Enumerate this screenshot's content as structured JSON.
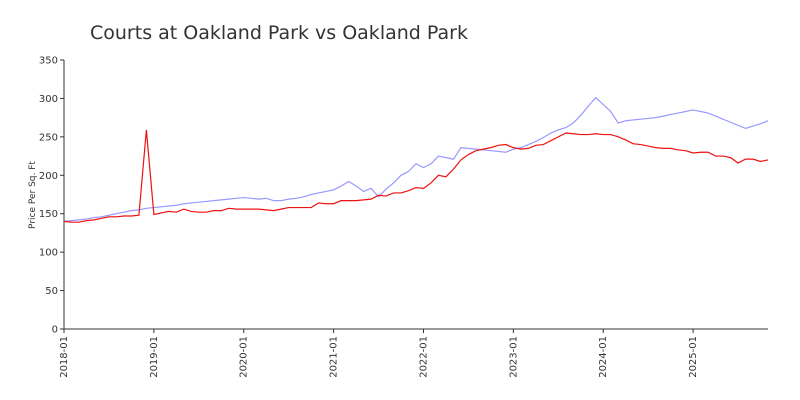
{
  "chart_data": {
    "type": "line",
    "title": "Courts at Oakland Park vs Oakland Park",
    "y_label": "Price Per Sq. Ft",
    "x": [
      "2018-01",
      "2018-02",
      "2018-03",
      "2018-04",
      "2018-05",
      "2018-06",
      "2018-07",
      "2018-08",
      "2018-09",
      "2018-10",
      "2018-11",
      "2018-12",
      "2019-01",
      "2019-02",
      "2019-03",
      "2019-04",
      "2019-05",
      "2019-06",
      "2019-07",
      "2019-08",
      "2019-09",
      "2019-10",
      "2019-11",
      "2019-12",
      "2020-01",
      "2020-02",
      "2020-03",
      "2020-04",
      "2020-05",
      "2020-06",
      "2020-07",
      "2020-08",
      "2020-09",
      "2020-10",
      "2020-11",
      "2020-12",
      "2021-01",
      "2021-02",
      "2021-03",
      "2021-04",
      "2021-05",
      "2021-06",
      "2021-07",
      "2021-08",
      "2021-09",
      "2021-10",
      "2021-11",
      "2021-12",
      "2022-01",
      "2022-02",
      "2022-03",
      "2022-04",
      "2022-05",
      "2022-06",
      "2022-07",
      "2022-08",
      "2022-09",
      "2022-10",
      "2022-11",
      "2022-12",
      "2023-01",
      "2023-02",
      "2023-03",
      "2023-04",
      "2023-05",
      "2023-06",
      "2023-07",
      "2023-08",
      "2023-09",
      "2023-10",
      "2023-11",
      "2023-12",
      "2024-01",
      "2024-02",
      "2024-03",
      "2024-04",
      "2024-05",
      "2024-06",
      "2024-07",
      "2024-08",
      "2024-09",
      "2024-10",
      "2024-11",
      "2024-12",
      "2025-01",
      "2025-02",
      "2025-03",
      "2025-04",
      "2025-05",
      "2025-06",
      "2025-07",
      "2025-08",
      "2025-09",
      "2025-10",
      "2025-11"
    ],
    "series": [
      {
        "color": "#9999ff",
        "values": [
          140,
          141,
          142,
          143,
          145,
          146,
          148,
          150,
          152,
          154,
          155,
          157,
          158,
          159,
          160,
          161,
          163,
          164,
          165,
          166,
          167,
          168,
          169,
          170,
          171,
          170,
          169,
          170,
          167,
          167,
          169,
          170,
          172,
          175,
          177,
          179,
          181,
          186,
          192,
          186,
          179,
          183,
          172,
          182,
          190,
          200,
          205,
          215,
          210,
          215,
          225,
          223,
          221,
          236,
          235,
          234,
          233,
          232,
          231,
          230,
          234,
          236,
          240,
          244,
          249,
          255,
          259,
          262,
          268,
          278,
          290,
          301,
          292,
          283,
          268,
          271,
          272,
          273,
          274,
          275,
          277,
          279,
          281,
          283,
          285,
          283,
          281,
          277,
          273,
          269,
          265,
          261,
          264,
          267,
          271
        ]
      },
      {
        "color": "#ee1111",
        "values": [
          140,
          139,
          139,
          141,
          142,
          144,
          146,
          146,
          147,
          147,
          148,
          259,
          149,
          151,
          153,
          152,
          156,
          153,
          152,
          152,
          154,
          154,
          157,
          156,
          156,
          156,
          156,
          155,
          154,
          156,
          158,
          158,
          158,
          158,
          164,
          163,
          163,
          167,
          167,
          167,
          168,
          169,
          174,
          173,
          177,
          177,
          180,
          184,
          183,
          190,
          200,
          198,
          208,
          220,
          227,
          232,
          234,
          236,
          239,
          240,
          236,
          234,
          235,
          239,
          240,
          245,
          250,
          255,
          254,
          253,
          253,
          254,
          253,
          253,
          250,
          246,
          241,
          240,
          238,
          236,
          235,
          235,
          233,
          232,
          229,
          230,
          230,
          225,
          225,
          223,
          216,
          221,
          221,
          218,
          220
        ]
      }
    ],
    "xticks": [
      "2018-01",
      "2019-01",
      "2020-01",
      "2021-01",
      "2022-01",
      "2023-01",
      "2024-01",
      "2025-01"
    ],
    "ylim": [
      0,
      350
    ],
    "yticks": [
      0,
      50,
      100,
      150,
      200,
      250,
      300,
      350
    ]
  }
}
